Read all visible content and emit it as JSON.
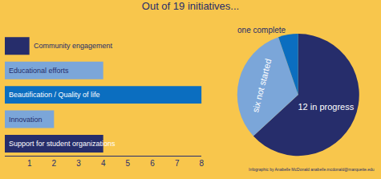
{
  "chart_data": [
    {
      "type": "bar",
      "title": "Out of 19 initiatives...",
      "orientation": "horizontal",
      "categories": [
        "Community engagement",
        "Educational efforts",
        "Beautification / Quality of life",
        "Innovation",
        "Support for student organizations"
      ],
      "values": [
        1,
        4,
        8,
        2,
        4
      ],
      "colors": [
        "#262d6b",
        "#7ba6d9",
        "#0b6ec0",
        "#7ba6d9",
        "#262d6b"
      ],
      "xlim": [
        0,
        8
      ],
      "xticks": [
        1,
        2,
        3,
        4,
        5,
        6,
        7,
        8
      ],
      "tick_labels": "x"
    },
    {
      "type": "pie",
      "categories": [
        "12 in progress",
        "six not started",
        "one complete"
      ],
      "values": [
        12,
        6,
        1
      ],
      "colors": [
        "#262d6b",
        "#7ba6d9",
        "#0b6ec0"
      ],
      "annotations": [
        "Infographic by Anabelle McDonald anabelle.mcdonald@marquette.edu"
      ]
    }
  ]
}
